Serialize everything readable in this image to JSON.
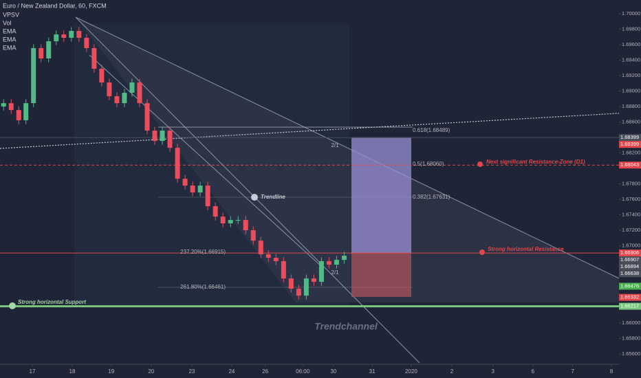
{
  "header": {
    "title": "Euro / New Zealand Dollar, 60, FXCM",
    "indicators": [
      "VPSV",
      "Vol",
      "EMA",
      "EMA",
      "EMA"
    ]
  },
  "chart_data": {
    "type": "candlestick",
    "x": [
      -0.72,
      -0.53,
      -0.34,
      -0.16,
      0.03,
      0.22,
      0.41,
      0.6,
      0.79,
      0.98,
      1.17,
      1.36,
      1.55,
      1.74,
      1.93,
      2.12,
      2.31,
      2.5,
      2.69,
      2.88,
      3.07,
      3.26,
      3.45,
      3.64,
      3.83,
      4.02,
      4.21,
      4.4,
      4.59,
      4.78,
      4.97,
      5.16,
      5.35,
      5.54,
      5.73,
      5.92,
      6.11,
      6.3,
      6.49,
      6.68,
      6.87,
      7.06,
      7.25,
      7.44,
      7.63,
      7.82
    ],
    "open": [
      1.688,
      1.68844,
      1.68755,
      1.68622,
      1.68844,
      1.69556,
      1.69422,
      1.69644,
      1.69733,
      1.69689,
      1.69778,
      1.69689,
      1.69556,
      1.69289,
      1.69111,
      1.68933,
      1.68844,
      1.68978,
      1.69111,
      1.68844,
      1.68489,
      1.68355,
      1.68489,
      1.68266,
      1.67866,
      1.67778,
      1.67689,
      1.67778,
      1.67511,
      1.67377,
      1.67289,
      1.67333,
      1.67333,
      1.672,
      1.67066,
      1.66889,
      1.66844,
      1.668,
      1.66577,
      1.66444,
      1.66355,
      1.66577,
      1.66533,
      1.668,
      1.66755,
      1.66817
    ],
    "high": [
      1.68894,
      1.68894,
      1.68805,
      1.68894,
      1.69606,
      1.69606,
      1.69694,
      1.69783,
      1.69783,
      1.69828,
      1.69828,
      1.69739,
      1.69606,
      1.69339,
      1.69161,
      1.68983,
      1.69028,
      1.69161,
      1.69161,
      1.68894,
      1.68539,
      1.68539,
      1.68539,
      1.68316,
      1.67916,
      1.67828,
      1.67828,
      1.67828,
      1.67561,
      1.67427,
      1.67383,
      1.67383,
      1.67383,
      1.6725,
      1.67116,
      1.66939,
      1.66894,
      1.6685,
      1.66627,
      1.66494,
      1.66627,
      1.66627,
      1.6685,
      1.6685,
      1.66867,
      1.66921
    ],
    "low": [
      1.6875,
      1.68705,
      1.68572,
      1.68572,
      1.68794,
      1.69372,
      1.69372,
      1.69594,
      1.69639,
      1.69639,
      1.69639,
      1.69506,
      1.69239,
      1.69061,
      1.68883,
      1.68794,
      1.68794,
      1.68928,
      1.68794,
      1.68439,
      1.68305,
      1.68305,
      1.68216,
      1.67816,
      1.67728,
      1.67639,
      1.67639,
      1.67461,
      1.67327,
      1.67239,
      1.67239,
      1.67283,
      1.6715,
      1.67016,
      1.66839,
      1.66794,
      1.6675,
      1.66527,
      1.66394,
      1.66305,
      1.66305,
      1.66483,
      1.66483,
      1.66705,
      1.66705,
      1.66767
    ],
    "close": [
      1.68844,
      1.68755,
      1.68622,
      1.68844,
      1.69556,
      1.69422,
      1.69644,
      1.69733,
      1.69689,
      1.69778,
      1.69689,
      1.69556,
      1.69289,
      1.69111,
      1.68933,
      1.68844,
      1.68978,
      1.69111,
      1.68844,
      1.68489,
      1.68355,
      1.68489,
      1.68266,
      1.67866,
      1.67778,
      1.67689,
      1.67778,
      1.67511,
      1.67377,
      1.67289,
      1.67333,
      1.67333,
      1.672,
      1.67066,
      1.66889,
      1.66844,
      1.668,
      1.66577,
      1.66444,
      1.66355,
      1.66577,
      1.66533,
      1.668,
      1.66755,
      1.66817,
      1.66871
    ],
    "up_color": "#53b987",
    "down_color": "#eb4d5c",
    "xlim": [
      -0.81,
      14.71
    ],
    "xticks": [
      {
        "value": 0,
        "label": "17"
      },
      {
        "value": 1,
        "label": "18"
      },
      {
        "value": 1.98,
        "label": "19"
      },
      {
        "value": 2.98,
        "label": "20"
      },
      {
        "value": 4,
        "label": "23"
      },
      {
        "value": 5,
        "label": "24"
      },
      {
        "value": 5.84,
        "label": "26"
      },
      {
        "value": 6.78,
        "label": "06:00"
      },
      {
        "value": 7.55,
        "label": "30"
      },
      {
        "value": 8.52,
        "label": "31"
      },
      {
        "value": 9.5,
        "label": "2020"
      },
      {
        "value": 10.52,
        "label": "2"
      },
      {
        "value": 11.55,
        "label": "3"
      },
      {
        "value": 12.55,
        "label": "6"
      },
      {
        "value": 13.55,
        "label": "7"
      },
      {
        "value": 14.52,
        "label": "8"
      }
    ],
    "ylim": [
      1.65467,
      1.70178
    ],
    "yticks": [
      {
        "value": 1.7,
        "label": "1.70000"
      },
      {
        "value": 1.698,
        "label": "1.69800"
      },
      {
        "value": 1.696,
        "label": "1.69600"
      },
      {
        "value": 1.694,
        "label": "1.69400"
      },
      {
        "value": 1.692,
        "label": "1.69200"
      },
      {
        "value": 1.69,
        "label": "1.69000"
      },
      {
        "value": 1.688,
        "label": "1.68800"
      },
      {
        "value": 1.686,
        "label": "1.68600"
      },
      {
        "value": 1.682,
        "label": "1.68200"
      },
      {
        "value": 1.678,
        "label": "1.67800"
      },
      {
        "value": 1.676,
        "label": "1.67600"
      },
      {
        "value": 1.674,
        "label": "1.67400"
      },
      {
        "value": 1.672,
        "label": "1.67200"
      },
      {
        "value": 1.67,
        "label": "1.67000"
      },
      {
        "value": 1.66,
        "label": "1.66000"
      },
      {
        "value": 1.658,
        "label": "1.65800"
      },
      {
        "value": 1.656,
        "label": "1.65600"
      }
    ],
    "price_labels": [
      {
        "value": 1.68399,
        "label": "1.68399",
        "color": "#4a4e5a",
        "line": "solid"
      },
      {
        "value": 1.68399,
        "label": "1.68399",
        "color": "#e0474c"
      },
      {
        "value": 1.68043,
        "label": "1.68043",
        "color": "#e0474c",
        "line": "dashed"
      },
      {
        "value": 1.66906,
        "label": "1.66906",
        "color": "#e0474c",
        "line": "solid"
      },
      {
        "value": 1.66907,
        "label": "1.66907",
        "color": "#4a4e5a"
      },
      {
        "value": 1.66894,
        "label": "1.66894",
        "color": "#4a4e5a"
      },
      {
        "value": 1.66638,
        "label": "1.66638",
        "color": "#4a4e5a"
      },
      {
        "value": 1.66476,
        "label": "1.66476",
        "color": "#4caf50"
      },
      {
        "value": 1.66332,
        "label": "1.66332",
        "color": "#e0474c"
      },
      {
        "value": 1.66217,
        "label": "1.66217",
        "color": "#7bc67e",
        "line": "thick"
      }
    ],
    "annotations": [
      "Next significant Resistance-Zone (D1)",
      "Strong horizontal Resistance",
      "Strong horizontal Support",
      "Trendline",
      "Trendchannel"
    ],
    "fib_labels": [
      "0.618(1.68489)",
      "0.5(1.68060)",
      "0.382(1.67631)",
      "237.20%(1.66915)",
      "261.80%(1.66461)",
      "2/1",
      "2/1"
    ]
  }
}
